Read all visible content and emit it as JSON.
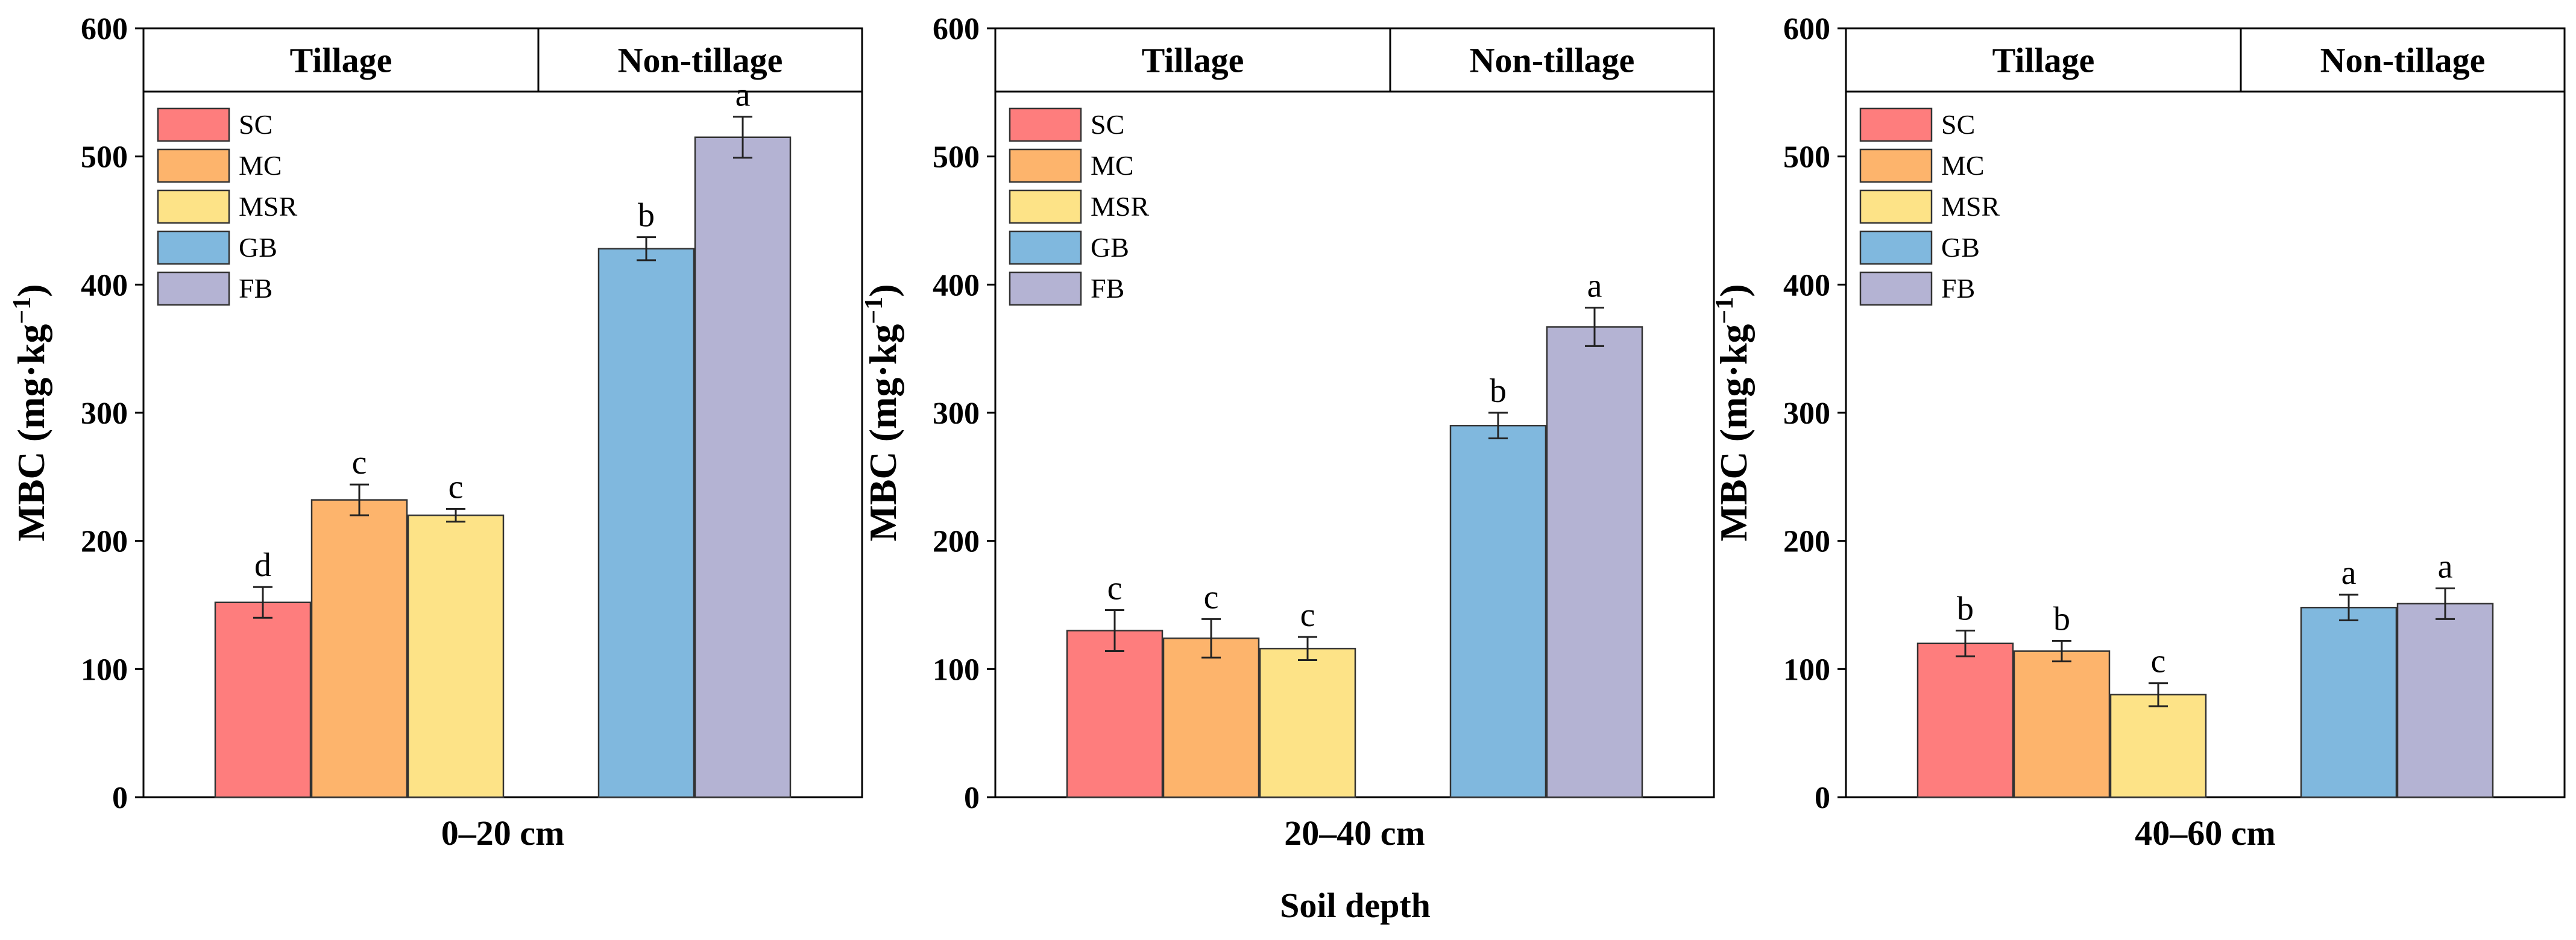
{
  "figure": {
    "shared_xlabel": "Soil depth"
  },
  "chart_data": [
    {
      "type": "bar",
      "panel_label": "0–20 cm",
      "ylabel_main": "MBC (mg·kg",
      "ylabel_sup": "−1",
      "ylabel_close": ")",
      "ylim": [
        0,
        600
      ],
      "yticks": [
        0,
        100,
        200,
        300,
        400,
        500,
        600
      ],
      "groups": [
        "Tillage",
        "Non-tillage"
      ],
      "series": [
        {
          "name": "SC",
          "group": "Tillage",
          "value": 152,
          "error": 12,
          "letter": "d"
        },
        {
          "name": "MC",
          "group": "Tillage",
          "value": 232,
          "error": 12,
          "letter": "c"
        },
        {
          "name": "MSR",
          "group": "Tillage",
          "value": 220,
          "error": 5,
          "letter": "c"
        },
        {
          "name": "GB",
          "group": "Non-tillage",
          "value": 428,
          "error": 9,
          "letter": "b"
        },
        {
          "name": "FB",
          "group": "Non-tillage",
          "value": 515,
          "error": 16,
          "letter": "a"
        }
      ]
    },
    {
      "type": "bar",
      "panel_label": "20–40 cm",
      "ylabel_main": "MBC (mg·kg",
      "ylabel_sup": "−1",
      "ylabel_close": ")",
      "ylim": [
        0,
        600
      ],
      "yticks": [
        0,
        100,
        200,
        300,
        400,
        500,
        600
      ],
      "groups": [
        "Tillage",
        "Non-tillage"
      ],
      "series": [
        {
          "name": "SC",
          "group": "Tillage",
          "value": 130,
          "error": 16,
          "letter": "c"
        },
        {
          "name": "MC",
          "group": "Tillage",
          "value": 124,
          "error": 15,
          "letter": "c"
        },
        {
          "name": "MSR",
          "group": "Tillage",
          "value": 116,
          "error": 9,
          "letter": "c"
        },
        {
          "name": "GB",
          "group": "Non-tillage",
          "value": 290,
          "error": 10,
          "letter": "b"
        },
        {
          "name": "FB",
          "group": "Non-tillage",
          "value": 367,
          "error": 15,
          "letter": "a"
        }
      ]
    },
    {
      "type": "bar",
      "panel_label": "40–60 cm",
      "ylabel_main": "MBC (mg·kg",
      "ylabel_sup": "−1",
      "ylabel_close": ")",
      "ylim": [
        0,
        600
      ],
      "yticks": [
        0,
        100,
        200,
        300,
        400,
        500,
        600
      ],
      "groups": [
        "Tillage",
        "Non-tillage"
      ],
      "series": [
        {
          "name": "SC",
          "group": "Tillage",
          "value": 120,
          "error": 10,
          "letter": "b"
        },
        {
          "name": "MC",
          "group": "Tillage",
          "value": 114,
          "error": 8,
          "letter": "b"
        },
        {
          "name": "MSR",
          "group": "Tillage",
          "value": 80,
          "error": 9,
          "letter": "c"
        },
        {
          "name": "GB",
          "group": "Non-tillage",
          "value": 148,
          "error": 10,
          "letter": "a"
        },
        {
          "name": "FB",
          "group": "Non-tillage",
          "value": 151,
          "error": 12,
          "letter": "a"
        }
      ]
    }
  ],
  "colors": {
    "SC": "#fe7d7d",
    "MC": "#fdb46c",
    "MSR": "#fde387",
    "GB": "#80b8de",
    "FB": "#b4b3d3"
  }
}
